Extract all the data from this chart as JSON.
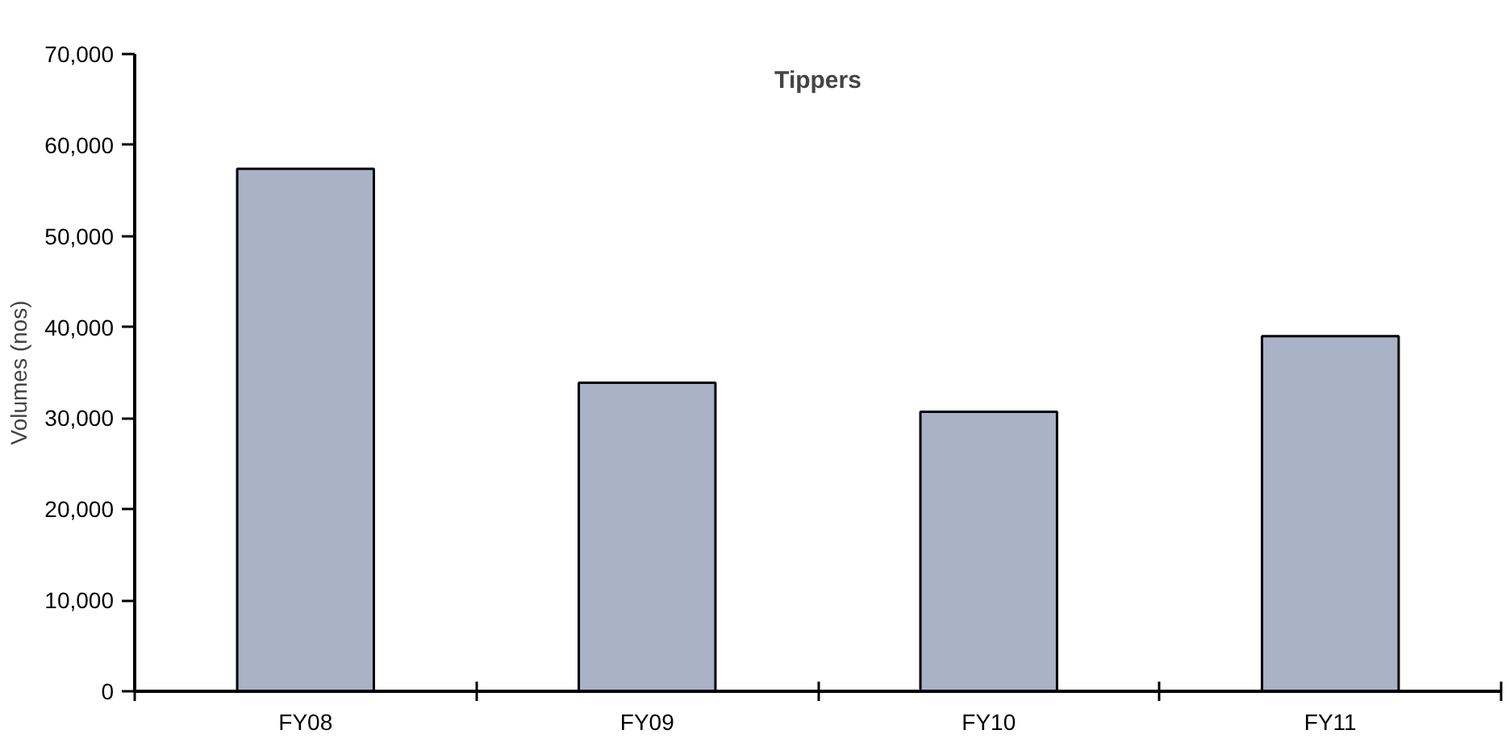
{
  "chart_data": {
    "type": "bar",
    "title": "Tippers",
    "ylabel": "Volumes (nos)",
    "categories": [
      "FY08",
      "FY09",
      "FY10",
      "FY11"
    ],
    "values": [
      57400,
      33900,
      30700,
      39000
    ],
    "color": "#aab2c8",
    "ylim": [
      0,
      70000
    ],
    "yticks": [
      {
        "value": 0,
        "label": "0"
      },
      {
        "value": 10000,
        "label": "10,000"
      },
      {
        "value": 20000,
        "label": "20,000"
      },
      {
        "value": 30000,
        "label": "30,000"
      },
      {
        "value": 40000,
        "label": "40,000"
      },
      {
        "value": 50000,
        "label": "50,000"
      },
      {
        "value": 60000,
        "label": "60,000"
      },
      {
        "value": 70000,
        "label": "70,000"
      }
    ],
    "grid": false
  }
}
